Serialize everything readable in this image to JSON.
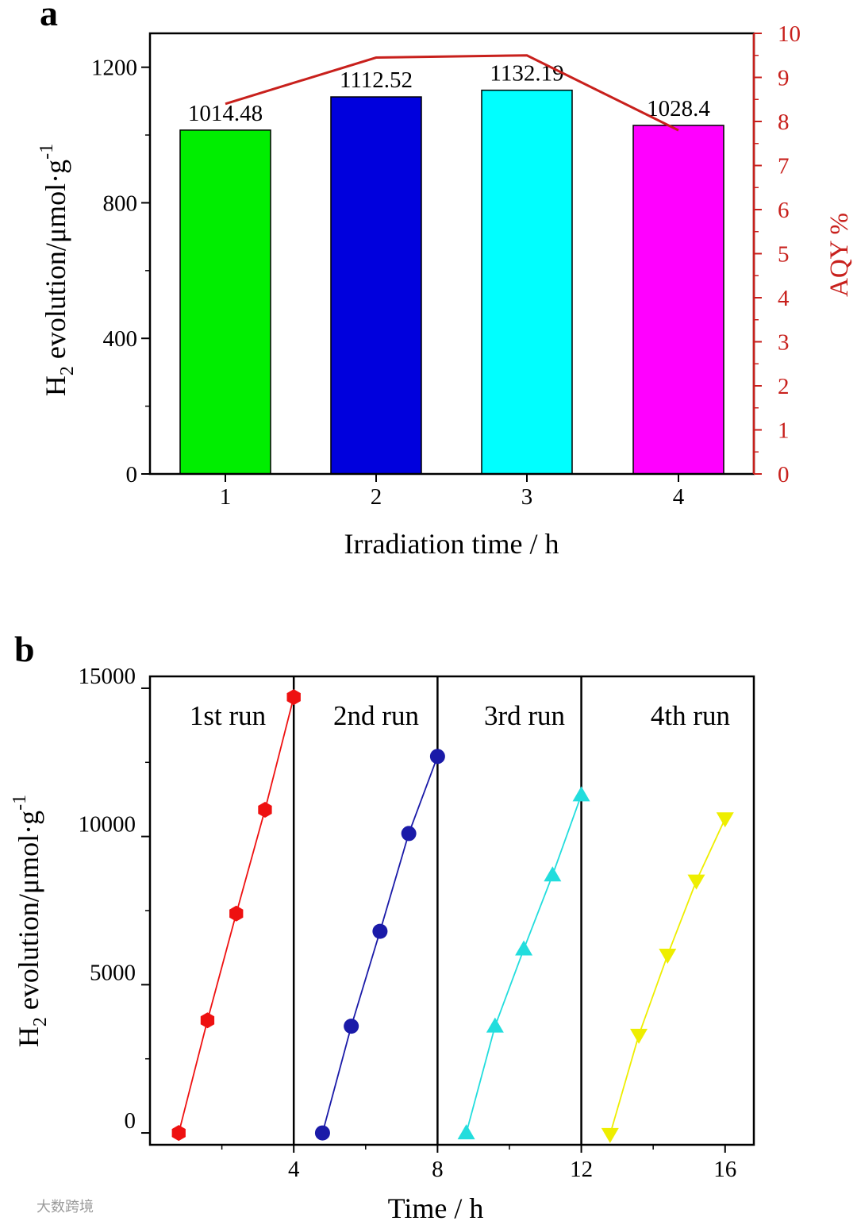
{
  "watermark": "大数跨境",
  "chart_data": [
    {
      "panel": "a",
      "type": "bar",
      "xlabel": "Irradiation time / h",
      "ylabel": {
        "prefix": "H",
        "sub": "2",
        "main": " evolution/μmol·g",
        "sup": "-1"
      },
      "y2label": "AQY %",
      "categories": [
        "1",
        "2",
        "3",
        "4"
      ],
      "values": [
        1014.48,
        1112.52,
        1132.19,
        1028.4
      ],
      "value_labels": [
        "1014.48",
        "1112.52",
        "1132.19",
        "1028.4"
      ],
      "bar_colors": [
        "#00ee00",
        "#0000dd",
        "#00ffff",
        "#ff00ff"
      ],
      "ylim": [
        0,
        1300
      ],
      "yticks": [
        "0",
        "400",
        "800",
        "1200"
      ],
      "y2lim": [
        0,
        10
      ],
      "y2ticks": [
        "0",
        "1",
        "2",
        "3",
        "4",
        "5",
        "6",
        "7",
        "8",
        "9",
        "10"
      ],
      "line_series": {
        "name": "AQY",
        "axis": "right",
        "color": "#c8201c",
        "values": [
          8.4,
          9.45,
          9.5,
          7.8
        ]
      }
    },
    {
      "panel": "b",
      "type": "line",
      "xlabel": "Time / h",
      "ylabel": {
        "prefix": "H",
        "sub": "2",
        "main": " evolution/μmol·g",
        "sup": "-1"
      },
      "xlim": [
        0,
        16.8
      ],
      "xticks": [
        "4",
        "8",
        "12",
        "16"
      ],
      "ylim": [
        -400,
        15400
      ],
      "yticks": [
        "0",
        "5000",
        "10000",
        "15000"
      ],
      "run_dividers": [
        4,
        8,
        12
      ],
      "series": [
        {
          "name": "1st run",
          "marker": "hexagon",
          "color": "#ee1111",
          "x": [
            0.8,
            1.6,
            2.4,
            3.2,
            4.0
          ],
          "y": [
            0,
            3800,
            7400,
            10900,
            14700
          ]
        },
        {
          "name": "2nd run",
          "marker": "circle",
          "color": "#1a1aa8",
          "x": [
            4.8,
            5.6,
            6.4,
            7.2,
            8.0
          ],
          "y": [
            0,
            3600,
            6800,
            10100,
            12700
          ]
        },
        {
          "name": "3rd run",
          "marker": "triangle-up",
          "color": "#22dddd",
          "x": [
            8.8,
            9.6,
            10.4,
            11.2,
            12.0
          ],
          "y": [
            0,
            3600,
            6200,
            8700,
            11400
          ]
        },
        {
          "name": "4th run",
          "marker": "triangle-down",
          "color": "#eeee00",
          "x": [
            12.8,
            13.6,
            14.4,
            15.2,
            16.0
          ],
          "y": [
            -50,
            3300,
            6000,
            8500,
            10600
          ]
        }
      ]
    }
  ]
}
